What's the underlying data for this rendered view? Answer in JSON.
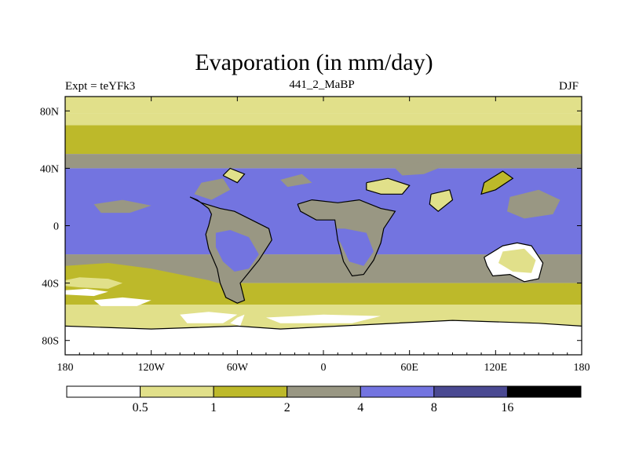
{
  "header": {
    "title": "Evaporation (in mm/day)",
    "left_label": "Expt = teYFk3",
    "center_label": "441_2_MaBP",
    "right_label": "DJF"
  },
  "chart_data": {
    "type": "heatmap",
    "title": "Evaporation (in mm/day)",
    "subtitle": "441_2_MaBP",
    "units": "mm/day",
    "season": "DJF",
    "experiment": "teYFk3",
    "projection": "cylindrical equidistant",
    "xlim": [
      -180,
      180
    ],
    "ylim": [
      -90,
      90
    ],
    "x_ticks": [
      {
        "value": -180,
        "label": "180"
      },
      {
        "value": -120,
        "label": "120W"
      },
      {
        "value": -60,
        "label": "60W"
      },
      {
        "value": 0,
        "label": "0"
      },
      {
        "value": 60,
        "label": "60E"
      },
      {
        "value": 120,
        "label": "120E"
      },
      {
        "value": 180,
        "label": "180"
      }
    ],
    "y_ticks": [
      {
        "value": 80,
        "label": "80N"
      },
      {
        "value": 40,
        "label": "40N"
      },
      {
        "value": 0,
        "label": "0"
      },
      {
        "value": -40,
        "label": "40S"
      },
      {
        "value": -80,
        "label": "80S"
      }
    ],
    "contour_levels": [
      0.5,
      1,
      2,
      4,
      8,
      16
    ],
    "colorbar": {
      "labels": [
        "0.5",
        "1",
        "2",
        "4",
        "8",
        "16"
      ],
      "colors": [
        "#ffffff",
        "#e1e08a",
        "#bdb92a",
        "#999783",
        "#7374e0",
        "#4a4992",
        "#000000"
      ]
    },
    "fields": {
      "zonal_bands": [
        {
          "lat": [
            78,
            90
          ],
          "level": 1
        },
        {
          "lat": [
            70,
            78
          ],
          "level": 1
        },
        {
          "lat": [
            50,
            70
          ],
          "level": 2
        },
        {
          "lat": [
            40,
            50
          ],
          "level": 3
        },
        {
          "lat": [
            -20,
            40
          ],
          "level": 4
        },
        {
          "lat": [
            -40,
            -20
          ],
          "level": 3
        },
        {
          "lat": [
            -55,
            -40
          ],
          "level": 2
        },
        {
          "lat": [
            -70,
            -55
          ],
          "level": 1
        },
        {
          "lat": [
            -90,
            -70
          ],
          "level": 0
        }
      ]
    },
    "accent_colors": {
      "coastline": "#000000",
      "frame": "#000000"
    }
  }
}
